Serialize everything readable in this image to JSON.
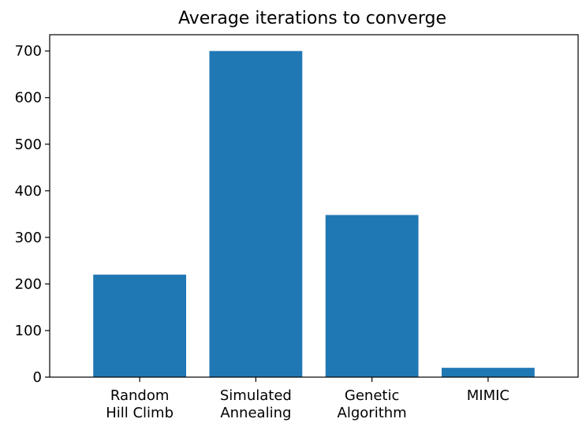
{
  "chart_data": {
    "type": "bar",
    "title": "Average iterations to converge",
    "xlabel": "",
    "ylabel": "",
    "categories": [
      [
        "Random",
        "Hill Climb"
      ],
      [
        "Simulated",
        "Annealing"
      ],
      [
        "Genetic",
        "Algorithm"
      ],
      [
        "MIMIC"
      ]
    ],
    "values": [
      220,
      700,
      348,
      20
    ],
    "ylim": [
      0,
      735
    ],
    "yticks": [
      0,
      100,
      200,
      300,
      400,
      500,
      600,
      700
    ],
    "bar_color": "#1f77b4",
    "grid": false,
    "legend": "none"
  }
}
